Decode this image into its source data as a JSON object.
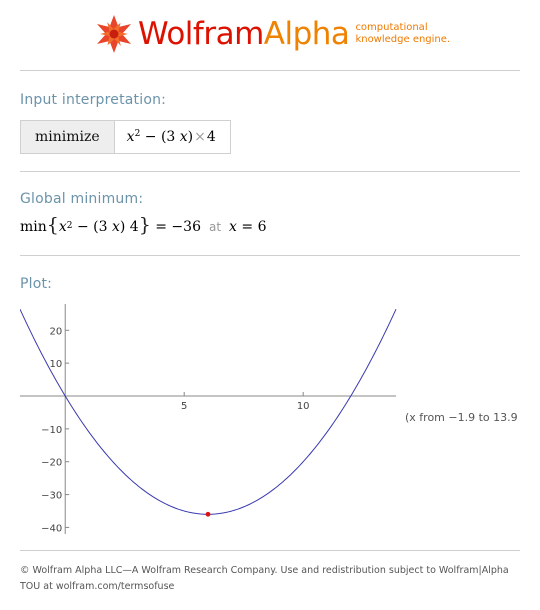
{
  "header": {
    "brand_part1": "Wolfram",
    "brand_part2": "Alpha",
    "tagline_line1": "computational",
    "tagline_line2": "knowledge engine.",
    "logo_icon": "wolfram-spikey-star-icon"
  },
  "input_interpretation": {
    "title": "Input interpretation:",
    "command": "minimize",
    "expr": {
      "x": "x",
      "exp": "2",
      "minus": " − (3 ",
      "x2": "x",
      "close": ")",
      "times": "×",
      "four": "4"
    }
  },
  "global_minimum": {
    "title": "Global minimum:",
    "min": "min",
    "expr": {
      "x": "x",
      "exp": "2",
      "middle": " − (3 ",
      "x2": "x",
      "tail": ") 4"
    },
    "equals": " = −36",
    "at": "at",
    "var": "x",
    "var_value": " = 6"
  },
  "plot": {
    "title": "Plot:",
    "range_note": "(x from −1.9 to 13.9"
  },
  "chart_data": {
    "type": "line",
    "function": "x^2 - 12x",
    "x": [
      -1.9,
      -1,
      0,
      1,
      2,
      3,
      4,
      5,
      6,
      7,
      8,
      9,
      10,
      11,
      12,
      13,
      13.9
    ],
    "y": [
      26.41,
      13,
      0,
      -11,
      -20,
      -27,
      -32,
      -35,
      -36,
      -35,
      -32,
      -27,
      -20,
      -11,
      0,
      13,
      25.21
    ],
    "xlim": [
      -1.9,
      13.9
    ],
    "ylim": [
      -42,
      28
    ],
    "x_ticks": [
      5,
      10
    ],
    "y_ticks": [
      20,
      10,
      -10,
      -20,
      -30,
      -40
    ],
    "x_tick_labels": [
      "5",
      "10"
    ],
    "y_tick_labels": [
      "20",
      "10",
      "−10",
      "−20",
      "−30",
      "−40"
    ],
    "minimum_point": {
      "x": 6,
      "y": -36
    },
    "line_color": "#3a3ab0",
    "point_color": "#dd1111",
    "grid": false
  },
  "footer": {
    "line1": "© Wolfram Alpha LLC—A Wolfram Research Company. Use and redistribution subject to Wolfram|Alpha",
    "line2": "TOU at wolfram.com/termsofuse"
  }
}
